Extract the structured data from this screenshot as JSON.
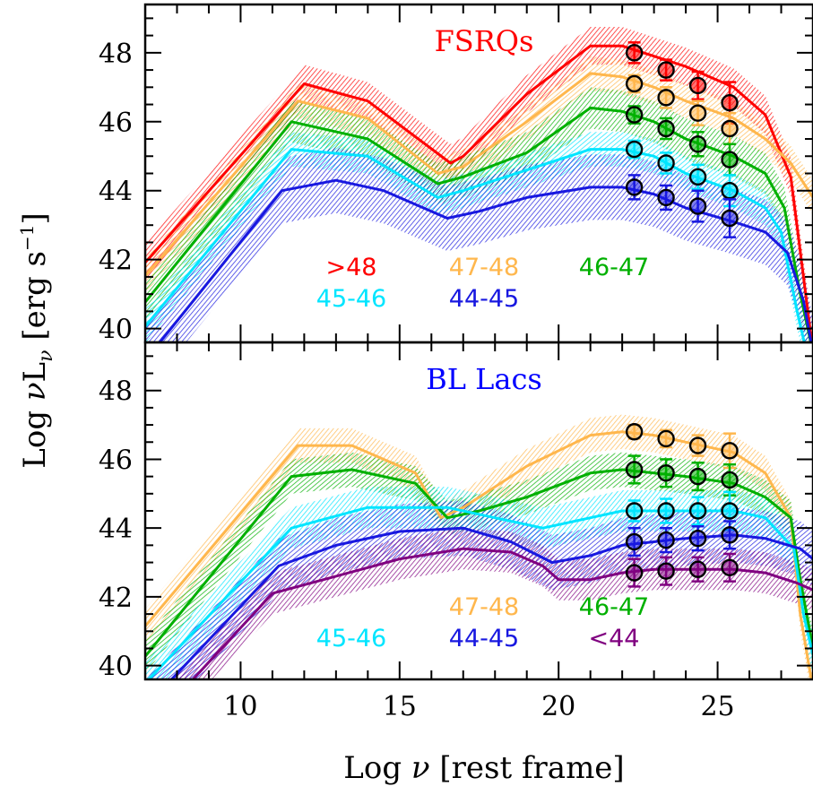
{
  "chart_data": {
    "type": "line",
    "xlabel_parts": [
      "Log ",
      "ν",
      " [rest frame]"
    ],
    "ylabel_parts": [
      "Log ",
      "ν",
      "L",
      "ν",
      " [erg s",
      "−1",
      "]"
    ],
    "xlim": [
      7,
      28
    ],
    "ylim": [
      39.6,
      49.4
    ],
    "x_ticks": [
      10,
      15,
      20,
      25
    ],
    "x_tick_labels": [
      "10",
      "15",
      "20",
      "25"
    ],
    "y_ticks": [
      40,
      42,
      44,
      46,
      48
    ],
    "y_tick_labels": [
      "40",
      "42",
      "44",
      "46",
      "48"
    ],
    "grid": false,
    "panels": [
      {
        "title": "FSRQs",
        "title_color": "#ff0000",
        "data_x": [
          22.38,
          23.38,
          24.38,
          25.38
        ],
        "series": [
          {
            "name": ">48",
            "color": "#ff0000",
            "band": 0.55,
            "curve": [
              [
                6.5,
                41.4
              ],
              [
                12,
                47.1
              ],
              [
                14,
                46.6
              ],
              [
                16.6,
                44.8
              ],
              [
                17,
                45.0
              ],
              [
                19,
                46.8
              ],
              [
                21,
                48.2
              ],
              [
                22,
                48.2
              ],
              [
                23,
                47.9
              ],
              [
                24,
                47.6
              ],
              [
                25.5,
                47.0
              ],
              [
                26.5,
                46.2
              ],
              [
                27.3,
                44.4
              ],
              [
                27.7,
                41.5
              ],
              [
                28,
                39.3
              ]
            ],
            "points": [
              48.0,
              47.5,
              47.05,
              46.55
            ],
            "errors": [
              0.3,
              0.3,
              0.4,
              0.6
            ]
          },
          {
            "name": "47-48",
            "color": "#ffb74d",
            "band": 0.5,
            "curve": [
              [
                6.5,
                41.0
              ],
              [
                11.8,
                46.6
              ],
              [
                14,
                46.1
              ],
              [
                16.2,
                44.5
              ],
              [
                17,
                44.7
              ],
              [
                19,
                46.0
              ],
              [
                21,
                47.4
              ],
              [
                22,
                47.3
              ],
              [
                23,
                47.0
              ],
              [
                24,
                46.6
              ],
              [
                25.5,
                46.1
              ],
              [
                26.5,
                45.5
              ],
              [
                27.3,
                44.8
              ],
              [
                28,
                43.8
              ]
            ],
            "points": [
              47.1,
              46.7,
              46.25,
              45.8
            ],
            "errors": [
              0.25,
              0.3,
              0.35,
              0.45
            ]
          },
          {
            "name": "46-47",
            "color": "#00b000",
            "band": 0.6,
            "curve": [
              [
                6.5,
                40.2
              ],
              [
                11.6,
                46.0
              ],
              [
                14,
                45.5
              ],
              [
                16.2,
                44.2
              ],
              [
                17,
                44.4
              ],
              [
                19,
                45.1
              ],
              [
                21,
                46.4
              ],
              [
                22,
                46.3
              ],
              [
                23,
                46.0
              ],
              [
                24,
                45.5
              ],
              [
                25.5,
                45.0
              ],
              [
                26.5,
                44.5
              ],
              [
                27.1,
                43.5
              ],
              [
                27.6,
                41.0
              ],
              [
                28,
                39.3
              ]
            ],
            "points": [
              46.2,
              45.8,
              45.35,
              44.9
            ],
            "errors": [
              0.25,
              0.3,
              0.35,
              0.45
            ]
          },
          {
            "name": "45-46",
            "color": "#00e5ff",
            "band": 0.5,
            "curve": [
              [
                6.5,
                39.5
              ],
              [
                11.6,
                45.2
              ],
              [
                14,
                45.0
              ],
              [
                16.2,
                43.8
              ],
              [
                17,
                44.0
              ],
              [
                19,
                44.6
              ],
              [
                21,
                45.2
              ],
              [
                22,
                45.2
              ],
              [
                23,
                45.0
              ],
              [
                24,
                44.5
              ],
              [
                25.5,
                44.0
              ],
              [
                26.5,
                43.5
              ],
              [
                27,
                42.8
              ],
              [
                27.5,
                40.5
              ],
              [
                27.8,
                39.3
              ]
            ],
            "points": [
              45.2,
              44.8,
              44.4,
              44.0
            ],
            "errors": [
              0.25,
              0.3,
              0.35,
              0.45
            ]
          },
          {
            "name": "44-45",
            "color": "#1818e0",
            "band": 0.95,
            "curve": [
              [
                6.5,
                38.5
              ],
              [
                11.3,
                44.0
              ],
              [
                13,
                44.3
              ],
              [
                14.5,
                44.0
              ],
              [
                16.5,
                43.2
              ],
              [
                17.5,
                43.4
              ],
              [
                19,
                43.8
              ],
              [
                21,
                44.1
              ],
              [
                22,
                44.1
              ],
              [
                23,
                43.9
              ],
              [
                24,
                43.5
              ],
              [
                25.5,
                43.1
              ],
              [
                26.5,
                42.8
              ],
              [
                27.2,
                42.2
              ],
              [
                27.7,
                40.8
              ],
              [
                28,
                39.3
              ]
            ],
            "points": [
              44.1,
              43.8,
              43.55,
              43.2
            ],
            "errors": [
              0.35,
              0.35,
              0.45,
              0.55
            ]
          }
        ],
        "legend_rows": [
          [
            ">48",
            "47-48",
            "46-47"
          ],
          [
            "45-46",
            "44-45"
          ]
        ]
      },
      {
        "title": "BL Lacs",
        "title_color": "#0000ff",
        "data_x": [
          22.38,
          23.38,
          24.38,
          25.38
        ],
        "series": [
          {
            "name": "47-48",
            "color": "#ffb74d",
            "band": 0.5,
            "curve": [
              [
                6.5,
                40.6
              ],
              [
                11.8,
                46.4
              ],
              [
                13.5,
                46.4
              ],
              [
                15.5,
                45.6
              ],
              [
                16.3,
                44.3
              ],
              [
                17,
                44.6
              ],
              [
                19,
                45.8
              ],
              [
                21,
                46.7
              ],
              [
                22,
                46.8
              ],
              [
                23,
                46.7
              ],
              [
                24,
                46.5
              ],
              [
                25.5,
                46.2
              ],
              [
                26.5,
                45.6
              ],
              [
                27.3,
                44.3
              ],
              [
                27.6,
                41.5
              ],
              [
                28,
                39.3
              ]
            ],
            "points": [
              46.8,
              46.6,
              46.4,
              46.25
            ],
            "errors": [
              0.2,
              0.25,
              0.3,
              0.5
            ]
          },
          {
            "name": "46-47",
            "color": "#00b000",
            "band": 0.5,
            "curve": [
              [
                6.5,
                39.7
              ],
              [
                11.6,
                45.5
              ],
              [
                13.5,
                45.7
              ],
              [
                15.5,
                45.3
              ],
              [
                16.5,
                44.3
              ],
              [
                17.5,
                44.5
              ],
              [
                19,
                44.9
              ],
              [
                21,
                45.6
              ],
              [
                22,
                45.7
              ],
              [
                23,
                45.6
              ],
              [
                24,
                45.5
              ],
              [
                25.5,
                45.3
              ],
              [
                26.5,
                44.9
              ],
              [
                27.3,
                44.3
              ],
              [
                27.6,
                42.5
              ],
              [
                28,
                40.5
              ]
            ],
            "points": [
              45.7,
              45.6,
              45.5,
              45.4
            ],
            "errors": [
              0.4,
              0.4,
              0.4,
              0.45
            ]
          },
          {
            "name": "45-46",
            "color": "#00e5ff",
            "band": 0.6,
            "curve": [
              [
                6.5,
                39.0
              ],
              [
                11.6,
                44.0
              ],
              [
                14,
                44.6
              ],
              [
                16.5,
                44.6
              ],
              [
                18,
                44.3
              ],
              [
                19.5,
                44.0
              ],
              [
                21,
                44.3
              ],
              [
                22,
                44.5
              ],
              [
                23,
                44.5
              ],
              [
                24,
                44.5
              ],
              [
                25.5,
                44.5
              ],
              [
                26.5,
                44.3
              ],
              [
                27.4,
                43.4
              ],
              [
                27.7,
                41.5
              ],
              [
                28,
                40.3
              ]
            ],
            "points": [
              44.5,
              44.5,
              44.5,
              44.5
            ],
            "errors": [
              0.3,
              0.35,
              0.4,
              0.55
            ]
          },
          {
            "name": "44-45",
            "color": "#1818e0",
            "band": 0.8,
            "curve": [
              [
                6.5,
                38.3
              ],
              [
                11.2,
                42.9
              ],
              [
                13,
                43.5
              ],
              [
                15,
                43.9
              ],
              [
                17,
                44.0
              ],
              [
                18.5,
                43.6
              ],
              [
                19.8,
                43.0
              ],
              [
                21,
                43.2
              ],
              [
                22,
                43.5
              ],
              [
                23,
                43.6
              ],
              [
                24,
                43.7
              ],
              [
                25.5,
                43.8
              ],
              [
                26.5,
                43.7
              ],
              [
                27.6,
                43.4
              ],
              [
                28,
                43.1
              ]
            ],
            "points": [
              43.6,
              43.65,
              43.7,
              43.8
            ],
            "errors": [
              0.4,
              0.35,
              0.35,
              0.4
            ]
          },
          {
            "name": "<44",
            "color": "#800080",
            "band": 0.6,
            "curve": [
              [
                6.5,
                37.6
              ],
              [
                11.0,
                42.1
              ],
              [
                13,
                42.6
              ],
              [
                15,
                43.1
              ],
              [
                17,
                43.4
              ],
              [
                18.5,
                43.3
              ],
              [
                19.5,
                42.9
              ],
              [
                20,
                42.5
              ],
              [
                21,
                42.5
              ],
              [
                22,
                42.7
              ],
              [
                23,
                42.8
              ],
              [
                24,
                42.8
              ],
              [
                25.5,
                42.8
              ],
              [
                26.5,
                42.7
              ],
              [
                27.5,
                42.4
              ],
              [
                28,
                42.2
              ]
            ],
            "points": [
              42.7,
              42.75,
              42.8,
              42.85
            ],
            "errors": [
              0.4,
              0.4,
              0.35,
              0.4
            ]
          }
        ],
        "legend_rows": [
          [
            "47-48",
            "46-47"
          ],
          [
            "45-46",
            "44-45",
            "<44"
          ]
        ]
      }
    ]
  }
}
